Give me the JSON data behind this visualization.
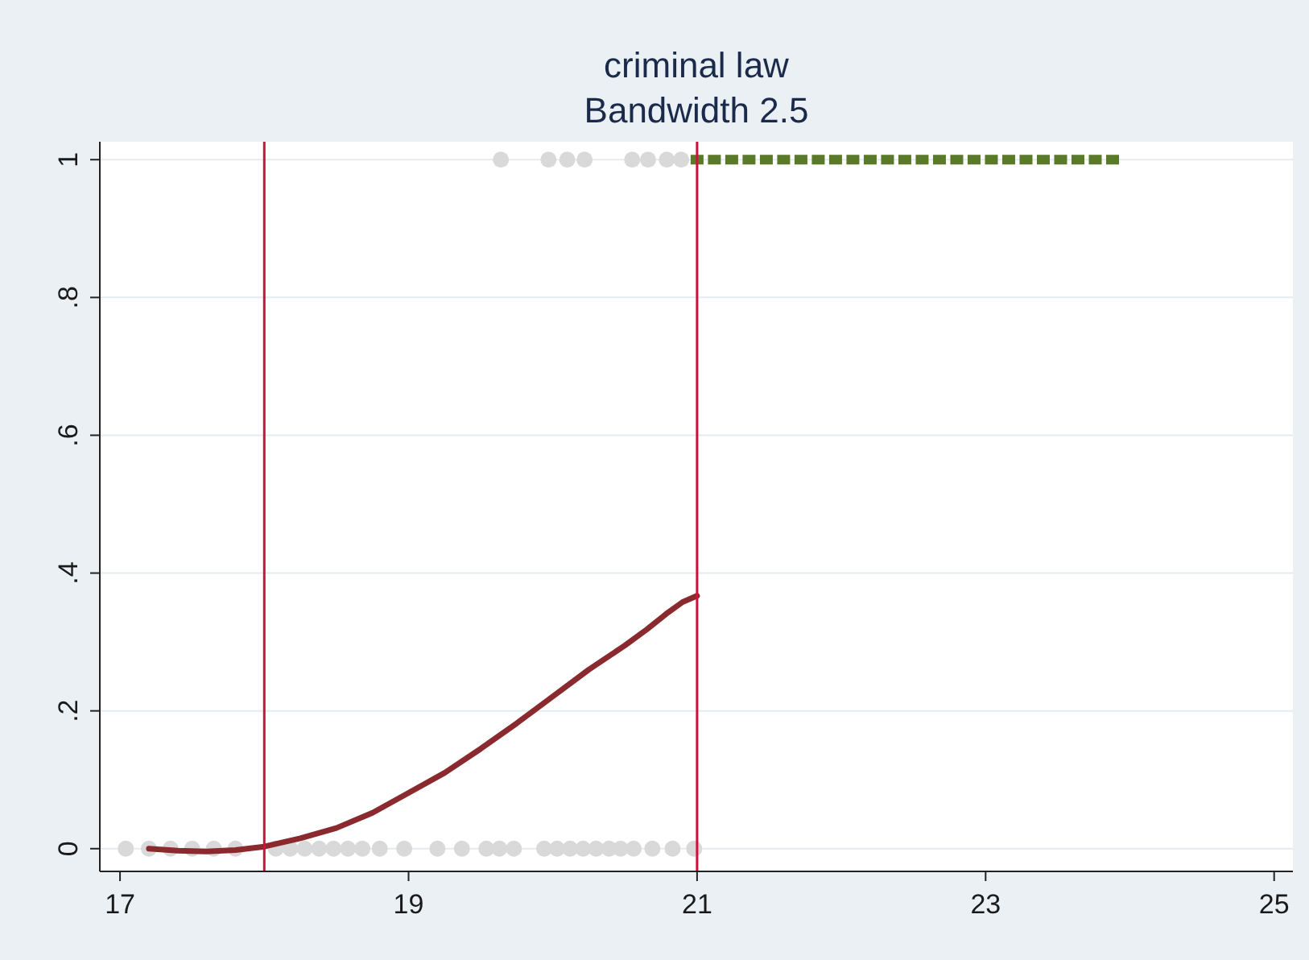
{
  "chart_data": {
    "type": "scatter",
    "title": "criminal law",
    "subtitle": "Bandwidth 2.5",
    "xlim": [
      16.86,
      25.13
    ],
    "ylim": [
      -0.033,
      1.026
    ],
    "xticks": [
      17,
      19,
      21,
      23,
      25
    ],
    "yticks": [
      {
        "value": 0,
        "label": "0"
      },
      {
        "value": 0.2,
        "label": ".2"
      },
      {
        "value": 0.4,
        "label": ".4"
      },
      {
        "value": 0.6,
        "label": ".6"
      },
      {
        "value": 0.8,
        "label": ".8"
      },
      {
        "value": 1,
        "label": "1"
      }
    ],
    "grid": "y",
    "ref_lines": [
      {
        "axis": "x",
        "value": 18,
        "color": "#d0103a"
      },
      {
        "axis": "x",
        "value": 21,
        "color": "#d0103a"
      }
    ],
    "series": [
      {
        "color": "#d9d9d9",
        "marker": "circle",
        "x": [
          17.04,
          17.2,
          17.35,
          17.5,
          17.65,
          17.8,
          18.08,
          18.18,
          18.28,
          18.38,
          18.48,
          18.58,
          18.68,
          18.8,
          18.97,
          19.2,
          19.37,
          19.54,
          19.63,
          19.73,
          19.94,
          20.03,
          20.12,
          20.21,
          20.3,
          20.39,
          20.47,
          20.56,
          20.69,
          20.83,
          20.98,
          19.64,
          19.97,
          20.1,
          20.22,
          20.55,
          20.66,
          20.79,
          20.89
        ],
        "values": [
          0,
          0,
          0,
          0,
          0,
          0,
          0,
          0,
          0,
          0,
          0,
          0,
          0,
          0,
          0,
          0,
          0,
          0,
          0,
          0,
          0,
          0,
          0,
          0,
          0,
          0,
          0,
          0,
          0,
          0,
          0,
          1,
          1,
          1,
          1,
          1,
          1,
          1,
          1
        ]
      },
      {
        "color": "#5a7a2a",
        "marker": "square",
        "x": [
          21.0,
          21.12,
          21.24,
          21.36,
          21.48,
          21.6,
          21.72,
          21.84,
          21.96,
          22.08,
          22.2,
          22.32,
          22.44,
          22.56,
          22.68,
          22.8,
          22.92,
          23.04,
          23.16,
          23.28,
          23.4,
          23.52,
          23.64,
          23.76,
          23.88
        ],
        "values": [
          1,
          1,
          1,
          1,
          1,
          1,
          1,
          1,
          1,
          1,
          1,
          1,
          1,
          1,
          1,
          1,
          1,
          1,
          1,
          1,
          1,
          1,
          1,
          1,
          1
        ]
      },
      {
        "type": "line",
        "color": "#8b2a2e",
        "marker": "none",
        "line_style": "solid",
        "x": [
          17.2,
          17.4,
          17.6,
          17.8,
          18.0,
          18.25,
          18.5,
          18.75,
          19.0,
          19.25,
          19.5,
          19.75,
          20.0,
          20.25,
          20.5,
          20.65,
          20.8,
          20.9,
          21.0
        ],
        "values": [
          0,
          -0.003,
          -0.004,
          -0.002,
          0.003,
          0.015,
          0.03,
          0.052,
          0.081,
          0.11,
          0.145,
          0.182,
          0.221,
          0.26,
          0.295,
          0.318,
          0.343,
          0.358,
          0.367
        ]
      }
    ]
  }
}
